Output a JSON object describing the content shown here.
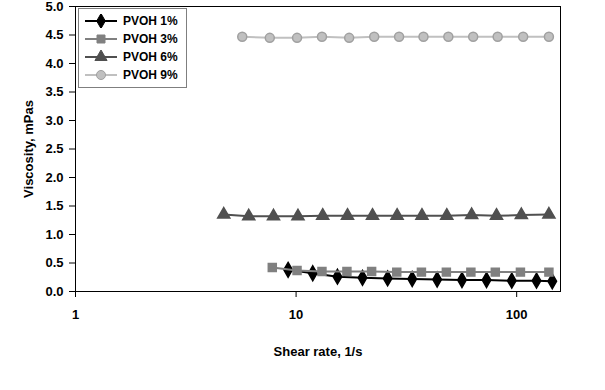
{
  "chart_data": {
    "type": "line",
    "x_label": "Shear rate, 1/s",
    "y_label": "Viscosity, mPas",
    "log": "x",
    "grid": false,
    "legend": "top-left",
    "xlim": [
      1,
      158
    ],
    "xticks": [
      1,
      10,
      100
    ],
    "ylim": [
      0,
      5
    ],
    "yticks": [
      {
        "value": 0,
        "label": "0.0"
      },
      0.5,
      {
        "value": 1,
        "label": "1.0"
      },
      1.5,
      {
        "value": 2,
        "label": "2.0"
      },
      2.5,
      {
        "value": 3,
        "label": "3.0"
      },
      3.5,
      {
        "value": 4,
        "label": "4.0"
      },
      4.5,
      {
        "value": 5,
        "label": "5.0"
      }
    ],
    "series": [
      {
        "name": "PVOH 1%",
        "color": "#000000",
        "marker": "diamond",
        "x": [
          9.2,
          11.9,
          15.4,
          20,
          26,
          33.6,
          43.6,
          56.5,
          73,
          95,
          123,
          145
        ],
        "values": [
          0.38,
          0.32,
          0.26,
          0.24,
          0.23,
          0.22,
          0.21,
          0.2,
          0.2,
          0.19,
          0.19,
          0.18
        ]
      },
      {
        "name": "PVOH 3%",
        "color": "#808080",
        "marker": "square",
        "x": [
          7.8,
          10.1,
          13.1,
          17,
          22,
          28.6,
          37,
          48,
          62,
          80,
          104,
          140
        ],
        "values": [
          0.42,
          0.37,
          0.35,
          0.35,
          0.35,
          0.34,
          0.34,
          0.34,
          0.34,
          0.34,
          0.34,
          0.34
        ]
      },
      {
        "name": "PVOH 6%",
        "color": "#505050",
        "marker": "triangle",
        "x": [
          4.7,
          6.1,
          7.9,
          10.2,
          13.2,
          17.1,
          22.2,
          28.7,
          37.2,
          48.2,
          62.5,
          81,
          105,
          140
        ],
        "values": [
          1.35,
          1.32,
          1.32,
          1.32,
          1.33,
          1.33,
          1.33,
          1.33,
          1.33,
          1.33,
          1.34,
          1.33,
          1.34,
          1.35
        ]
      },
      {
        "name": "PVOH 9%",
        "color": "#c0c0c0",
        "marker": "circle",
        "x": [
          5.7,
          7.6,
          10.1,
          13.1,
          17.4,
          22.6,
          29.3,
          37.8,
          49,
          63.5,
          82,
          107,
          140
        ],
        "values": [
          4.47,
          4.45,
          4.45,
          4.47,
          4.45,
          4.47,
          4.47,
          4.47,
          4.47,
          4.47,
          4.47,
          4.47,
          4.47
        ]
      }
    ]
  }
}
